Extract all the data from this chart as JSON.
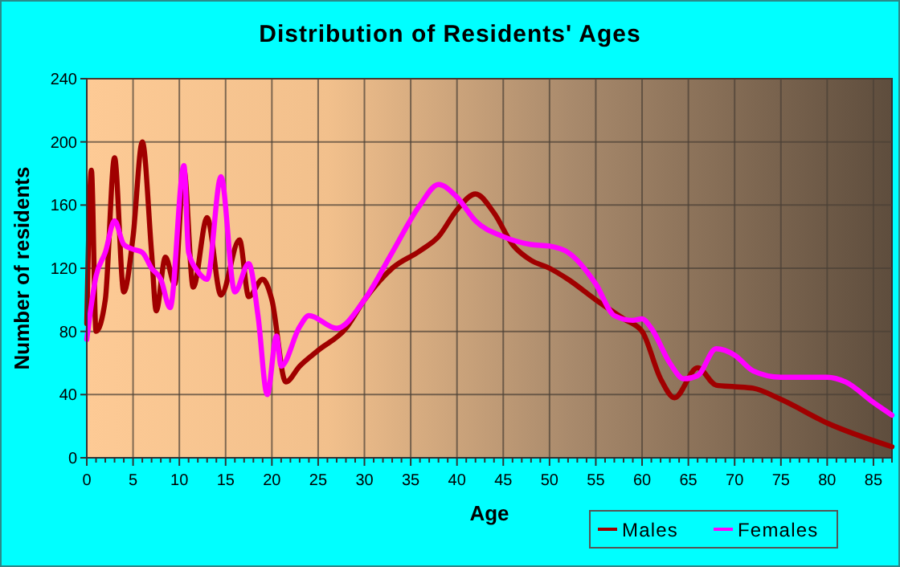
{
  "chart_data": {
    "type": "line",
    "title": "Distribution of Residents' Ages",
    "xlabel": "Age",
    "ylabel": "Number of residents",
    "xlim": [
      0,
      87
    ],
    "ylim": [
      0,
      240
    ],
    "xticks": [
      0,
      {
        "value": 1,
        "label": null
      },
      {
        "value": 2,
        "label": null
      },
      {
        "value": 3,
        "label": null
      },
      {
        "value": 4,
        "label": null
      },
      5,
      {
        "value": 6,
        "label": null
      },
      {
        "value": 7,
        "label": null
      },
      {
        "value": 8,
        "label": null
      },
      {
        "value": 9,
        "label": null
      },
      10,
      {
        "value": 11,
        "label": null
      },
      {
        "value": 12,
        "label": null
      },
      {
        "value": 13,
        "label": null
      },
      {
        "value": 14,
        "label": null
      },
      15,
      {
        "value": 16,
        "label": null
      },
      {
        "value": 17,
        "label": null
      },
      {
        "value": 18,
        "label": null
      },
      {
        "value": 19,
        "label": null
      },
      20,
      {
        "value": 21,
        "label": null
      },
      {
        "value": 22,
        "label": null
      },
      {
        "value": 23,
        "label": null
      },
      {
        "value": 24,
        "label": null
      },
      25,
      {
        "value": 26,
        "label": null
      },
      {
        "value": 27,
        "label": null
      },
      {
        "value": 28,
        "label": null
      },
      {
        "value": 29,
        "label": null
      },
      30,
      {
        "value": 31,
        "label": null
      },
      {
        "value": 32,
        "label": null
      },
      {
        "value": 33,
        "label": null
      },
      {
        "value": 34,
        "label": null
      },
      35,
      {
        "value": 36,
        "label": null
      },
      {
        "value": 37,
        "label": null
      },
      {
        "value": 38,
        "label": null
      },
      {
        "value": 39,
        "label": null
      },
      40,
      {
        "value": 41,
        "label": null
      },
      {
        "value": 42,
        "label": null
      },
      {
        "value": 43,
        "label": null
      },
      {
        "value": 44,
        "label": null
      },
      45,
      {
        "value": 46,
        "label": null
      },
      {
        "value": 47,
        "label": null
      },
      {
        "value": 48,
        "label": null
      },
      {
        "value": 49,
        "label": null
      },
      50,
      {
        "value": 51,
        "label": null
      },
      {
        "value": 52,
        "label": null
      },
      {
        "value": 53,
        "label": null
      },
      {
        "value": 54,
        "label": null
      },
      55,
      {
        "value": 56,
        "label": null
      },
      {
        "value": 57,
        "label": null
      },
      {
        "value": 58,
        "label": null
      },
      {
        "value": 59,
        "label": null
      },
      60,
      {
        "value": 61,
        "label": null
      },
      {
        "value": 62,
        "label": null
      },
      {
        "value": 63,
        "label": null
      },
      {
        "value": 64,
        "label": null
      },
      65,
      {
        "value": 66,
        "label": null
      },
      {
        "value": 67,
        "label": null
      },
      {
        "value": 68,
        "label": null
      },
      {
        "value": 69,
        "label": null
      },
      70,
      {
        "value": 71,
        "label": null
      },
      {
        "value": 72,
        "label": null
      },
      {
        "value": 73,
        "label": null
      },
      {
        "value": 74,
        "label": null
      },
      75,
      {
        "value": 76,
        "label": null
      },
      {
        "value": 77,
        "label": null
      },
      {
        "value": 78,
        "label": null
      },
      {
        "value": 79,
        "label": null
      },
      80,
      {
        "value": 81,
        "label": null
      },
      {
        "value": 82,
        "label": null
      },
      {
        "value": 83,
        "label": null
      },
      {
        "value": 84,
        "label": null
      },
      85,
      {
        "value": 86,
        "label": null
      },
      {
        "value": 87,
        "label": null
      }
    ],
    "yticks": [
      0,
      40,
      80,
      120,
      160,
      200,
      240
    ],
    "grid": true,
    "legend": "bottom right",
    "line_style": "solid",
    "series": [
      {
        "name": "Males",
        "color": "#a00000",
        "x": [
          0,
          0.5,
          1,
          2,
          3,
          4,
          5,
          6,
          7,
          7.5,
          8.5,
          9.5,
          10.5,
          11.5,
          13,
          14.5,
          16.5,
          17.5,
          19,
          20,
          21.5,
          23,
          25,
          28,
          30,
          33,
          36,
          38,
          40,
          42,
          44,
          46,
          48,
          50,
          52,
          55,
          58,
          60,
          62,
          63.5,
          66,
          68,
          70,
          72,
          75,
          80,
          87
        ],
        "values": [
          85,
          182,
          80,
          100,
          190,
          105,
          140,
          200,
          130,
          93,
          127,
          110,
          182,
          108,
          152,
          103,
          138,
          102,
          113,
          100,
          48,
          58,
          68,
          82,
          100,
          120,
          131,
          140,
          157,
          167,
          155,
          135,
          125,
          120,
          113,
          100,
          88,
          80,
          50,
          38,
          57,
          46,
          45,
          44,
          37,
          22,
          7
        ]
      },
      {
        "name": "Females",
        "color": "#ff00ff",
        "x": [
          0,
          1,
          2,
          3,
          4,
          5,
          6,
          7,
          8,
          9,
          10.5,
          11,
          12,
          13,
          14.5,
          16,
          17.5,
          18.5,
          19.5,
          20.5,
          21,
          23,
          24,
          27,
          30,
          33,
          36,
          38,
          40,
          42,
          45,
          48,
          50,
          52,
          55,
          57,
          59,
          60,
          61,
          63,
          64.5,
          66,
          68,
          70,
          72,
          75,
          80,
          82,
          85,
          87
        ],
        "values": [
          75,
          115,
          130,
          150,
          135,
          132,
          130,
          120,
          113,
          95,
          185,
          130,
          118,
          113,
          178,
          105,
          123,
          90,
          40,
          77,
          58,
          83,
          90,
          82,
          100,
          130,
          160,
          173,
          165,
          150,
          140,
          135,
          134,
          130,
          110,
          90,
          87,
          88,
          82,
          60,
          50,
          52,
          69,
          65,
          55,
          51,
          51,
          48,
          35,
          27
        ]
      }
    ]
  }
}
